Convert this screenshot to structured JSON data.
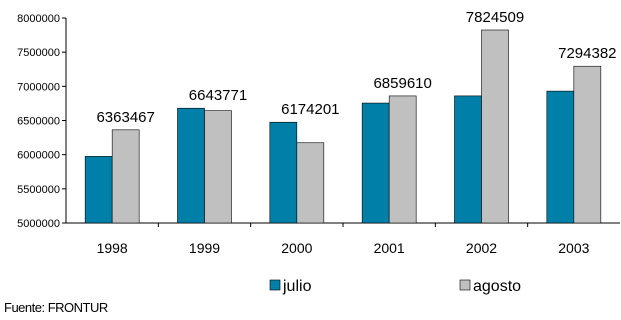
{
  "chart_data": {
    "type": "bar",
    "categories": [
      "1998",
      "1999",
      "2000",
      "2001",
      "2002",
      "2003"
    ],
    "series": [
      {
        "name": "julio",
        "color": "#0080A8",
        "values": [
          5975000,
          6680000,
          6475000,
          6755000,
          6860000,
          6930000
        ]
      },
      {
        "name": "agosto",
        "color": "#C0C0C0",
        "values": [
          6363467,
          6643771,
          6174201,
          6859610,
          7824509,
          7294382
        ]
      }
    ],
    "data_labels": [
      "6363467",
      "6643771",
      "6174201",
      "6859610",
      "7824509",
      "7294382"
    ],
    "yticks": [
      "5000000",
      "5500000",
      "6000000",
      "6500000",
      "7000000",
      "7500000",
      "8000000"
    ],
    "ylim": [
      5000000,
      8000000
    ],
    "legend_position": "bottom",
    "grid": false
  },
  "source_text": "Fuente: FRONTUR"
}
